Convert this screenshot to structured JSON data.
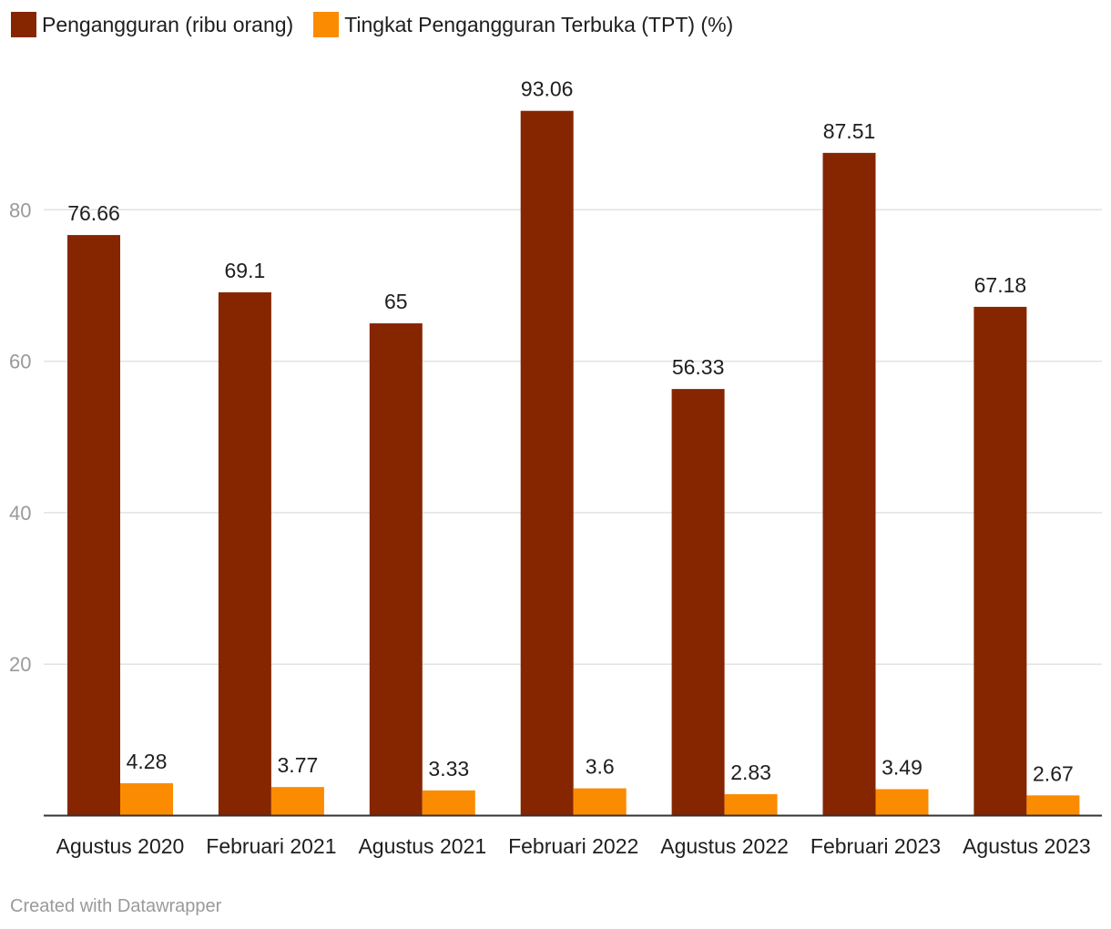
{
  "chart_data": {
    "type": "bar",
    "title": "",
    "xlabel": "",
    "ylabel": "",
    "categories": [
      "Agustus 2020",
      "Februari 2021",
      "Agustus 2021",
      "Februari 2022",
      "Agustus 2022",
      "Februari 2023",
      "Agustus 2023"
    ],
    "series": [
      {
        "name": "Pengangguran (ribu orang)",
        "color": "#862600",
        "values": [
          76.66,
          69.1,
          65,
          93.06,
          56.33,
          87.51,
          67.18
        ]
      },
      {
        "name": "Tingkat Pengangguran Terbuka (TPT) (%)",
        "color": "#fb8b00",
        "values": [
          4.28,
          3.77,
          3.33,
          3.6,
          2.83,
          3.49,
          2.67
        ]
      }
    ],
    "data_labels": [
      [
        "76.66",
        "69.1",
        "65",
        "93.06",
        "56.33",
        "87.51",
        "67.18"
      ],
      [
        "4.28",
        "3.77",
        "3.33",
        "3.6",
        "2.83",
        "3.49",
        "2.67"
      ]
    ],
    "ylim": [
      0,
      96.5
    ],
    "yticks": [
      20,
      40,
      60,
      80
    ],
    "ytick_labels": [
      "20",
      "40",
      "60",
      "80"
    ],
    "grid": true,
    "legend_position": "top-left"
  },
  "footer": {
    "credit": "Created with Datawrapper"
  }
}
